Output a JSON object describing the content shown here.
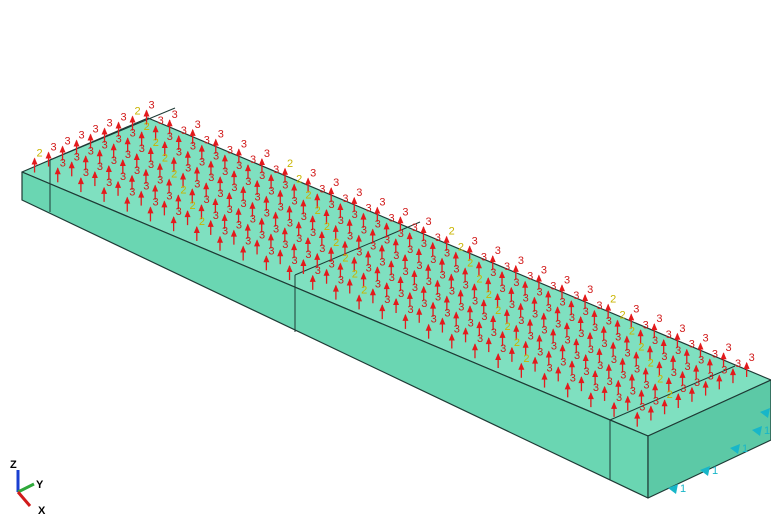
{
  "viewport": {
    "background": "#ffffff"
  },
  "model": {
    "face_top_color": "#7fe0c0",
    "face_front_color": "#6ad6b2",
    "face_side_color": "#5cc9a6",
    "edge_color": "#1e3a35",
    "partition_lines": 3
  },
  "loads": {
    "arrow_color": "#e31a1c",
    "label_color_normal": "#d11a1a",
    "label_color_alt": "#c9b400",
    "normal_label": "3",
    "tangential_label": "2"
  },
  "boundary_conditions": {
    "color": "#18b6c8",
    "label": "1"
  },
  "triad": {
    "z_label": "Z",
    "y_label": "Y",
    "x_label": "X",
    "z_color": "#1a3fd1",
    "y_color": "#2ea83a",
    "x_color": "#d11a1a"
  }
}
